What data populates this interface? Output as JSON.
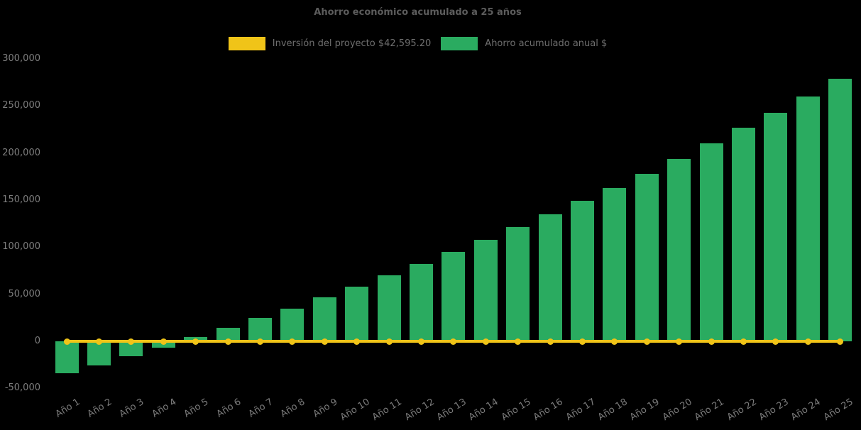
{
  "title": "Ahorro económico acumulado a 25 años",
  "legend": {
    "items": [
      {
        "label": "Inversión del proyecto $42,595.20",
        "color": "#f0c418"
      },
      {
        "label": "Ahorro acumulado anual $",
        "color": "#2aab60"
      }
    ]
  },
  "colors": {
    "background": "#000000",
    "title_text": "#5c5c5c",
    "legend_text": "#6f6f6f",
    "axis_text": "#7d7d7d",
    "bar_green": "#2aab60",
    "line_yellow": "#f0c418"
  },
  "chart_data": {
    "type": "bar",
    "title": "Ahorro económico acumulado a 25 años",
    "categories": [
      "Año 1",
      "Año 2",
      "Año 3",
      "Año 4",
      "Año 5",
      "Año 6",
      "Año 7",
      "Año 8",
      "Año 9",
      "Año 10",
      "Año 11",
      "Año 12",
      "Año 13",
      "Año 14",
      "Año 15",
      "Año 16",
      "Año 17",
      "Año 18",
      "Año 19",
      "Año 20",
      "Año 21",
      "Año 22",
      "Año 23",
      "Año 24",
      "Año 25"
    ],
    "series": [
      {
        "name": "Inversión del proyecto $42,595.20",
        "type": "line",
        "color": "#f0c418",
        "marker": "circle",
        "constant_value": 0
      },
      {
        "name": "Ahorro acumulado anual $",
        "type": "bar",
        "color": "#2aab60",
        "values": [
          -34000,
          -26000,
          -16000,
          -6500,
          4500,
          14000,
          25000,
          35000,
          47000,
          58000,
          70000,
          82000,
          95000,
          108000,
          121000,
          135000,
          149000,
          163000,
          178000,
          194000,
          210000,
          227000,
          243000,
          260000,
          279000
        ]
      }
    ],
    "xlabel": "",
    "ylabel": "",
    "ylim": [
      -50000,
      300000
    ],
    "y_ticks": [
      -50000,
      0,
      50000,
      100000,
      150000,
      200000,
      250000,
      300000
    ],
    "y_tick_labels": [
      "-50,000",
      "0",
      "50,000",
      "100,000",
      "150,000",
      "200,000",
      "250,000",
      "300,000"
    ],
    "grid": false,
    "legend_position": "top",
    "x_tick_rotation_deg": 32
  }
}
